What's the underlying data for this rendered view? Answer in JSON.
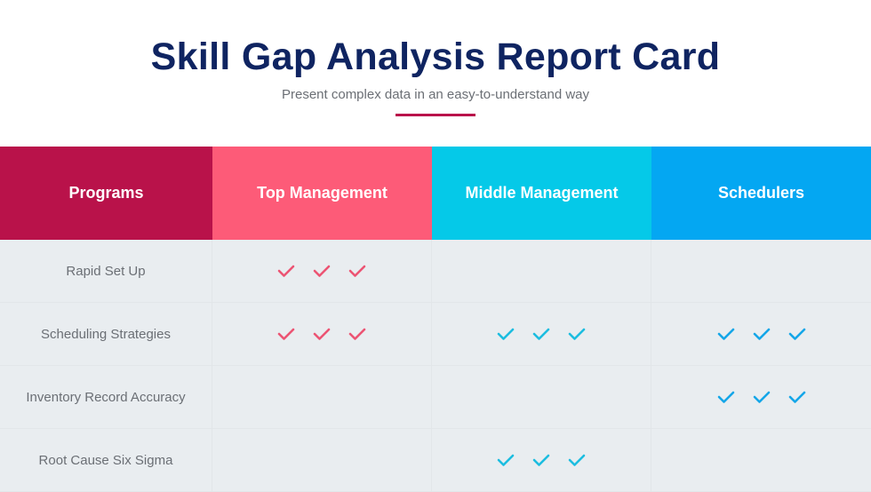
{
  "header": {
    "title": "Skill Gap Analysis Report Card",
    "subtitle": "Present complex data in an easy-to-understand way"
  },
  "colors": {
    "programs": "#b9124a",
    "top": "#fd5b78",
    "middle": "#05c9e8",
    "schedulers": "#04a7f2",
    "accent_rule": "#b9124a"
  },
  "columns": [
    {
      "label": "Programs",
      "color": "#b9124a"
    },
    {
      "label": "Top Management",
      "color": "#fd5b78",
      "check": "#ec5473"
    },
    {
      "label": "Middle Management",
      "color": "#05c9e8",
      "check": "#1cbde0"
    },
    {
      "label": "Schedulers",
      "color": "#04a7f2",
      "check": "#14a6e8"
    }
  ],
  "rows": [
    {
      "label": "Rapid Set Up",
      "checks": [
        3,
        0,
        0
      ]
    },
    {
      "label": "Scheduling Strategies",
      "checks": [
        3,
        3,
        3
      ]
    },
    {
      "label": "Inventory Record Accuracy",
      "checks": [
        0,
        0,
        3
      ]
    },
    {
      "label": "Root Cause Six Sigma",
      "checks": [
        0,
        3,
        0
      ]
    }
  ]
}
